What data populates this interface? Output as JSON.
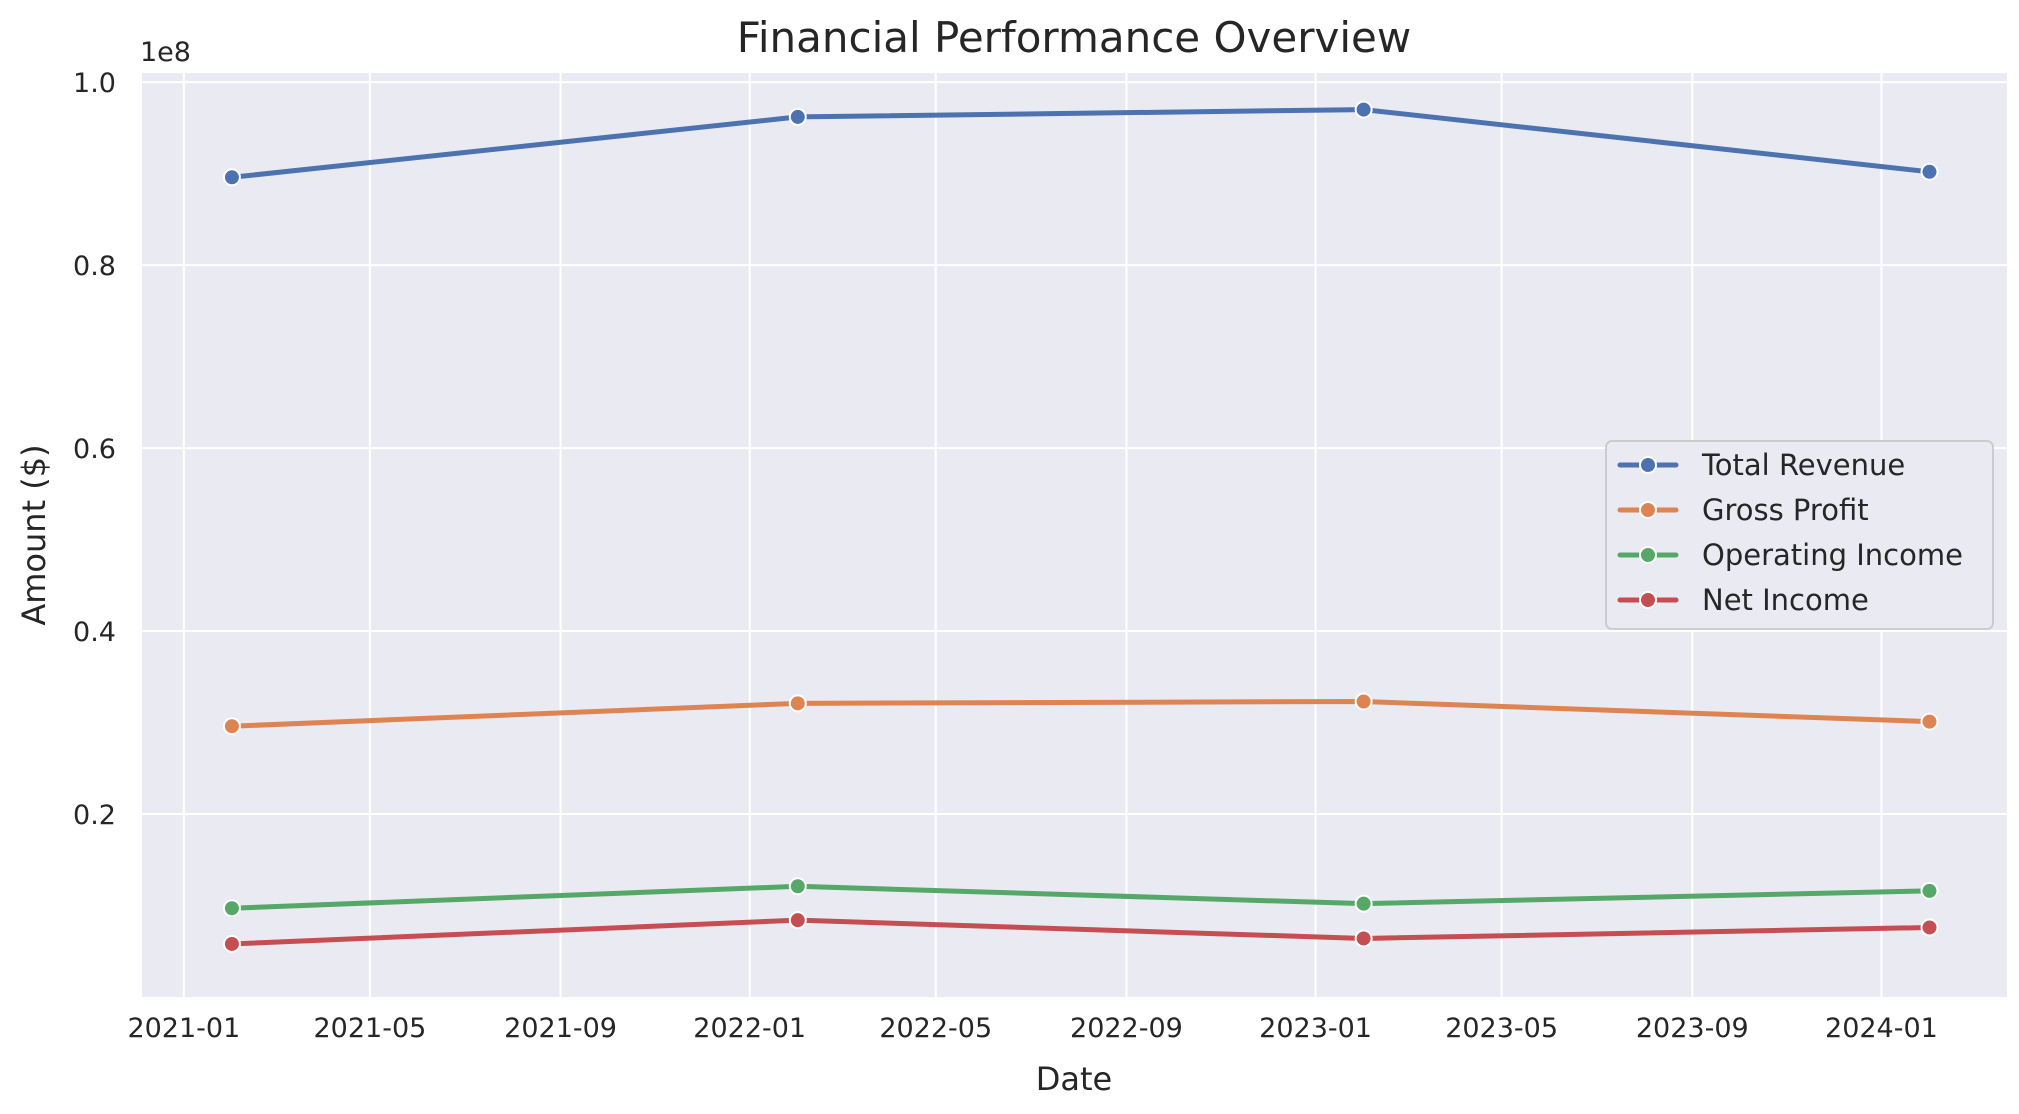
{
  "chart_data": {
    "type": "line",
    "title": "Financial Performance Overview",
    "xlabel": "Date",
    "ylabel": "Amount ($)",
    "y_offset_label": "1e8",
    "x": [
      "2021-02-01",
      "2022-02-01",
      "2023-02-01",
      "2024-02-01"
    ],
    "xlim": [
      "2020-12-05",
      "2024-03-22"
    ],
    "x_ticks": [
      "2021-01",
      "2021-05",
      "2021-09",
      "2022-01",
      "2022-05",
      "2022-09",
      "2023-01",
      "2023-05",
      "2023-09",
      "2024-01"
    ],
    "ylim": [
      0,
      101000000
    ],
    "y_ticks": [
      {
        "value": 20000000,
        "label": "0.2"
      },
      {
        "value": 40000000,
        "label": "0.4"
      },
      {
        "value": 60000000,
        "label": "0.6"
      },
      {
        "value": 80000000,
        "label": "0.8"
      },
      {
        "value": 100000000,
        "label": "1.0"
      }
    ],
    "grid": true,
    "legend_position": "center-right",
    "background_color": "#eaeaf2",
    "grid_color": "#ffffff",
    "series": [
      {
        "name": "Total Revenue",
        "color": "#4c72b0",
        "values": [
          89600000,
          96200000,
          97000000,
          90200000
        ]
      },
      {
        "name": "Gross Profit",
        "color": "#dd8452",
        "values": [
          29600000,
          32100000,
          32300000,
          30100000
        ]
      },
      {
        "name": "Operating Income",
        "color": "#55a868",
        "values": [
          9700000,
          12100000,
          10200000,
          11600000
        ]
      },
      {
        "name": "Net Income",
        "color": "#c44e52",
        "values": [
          5800000,
          8400000,
          6400000,
          7600000
        ]
      }
    ]
  }
}
